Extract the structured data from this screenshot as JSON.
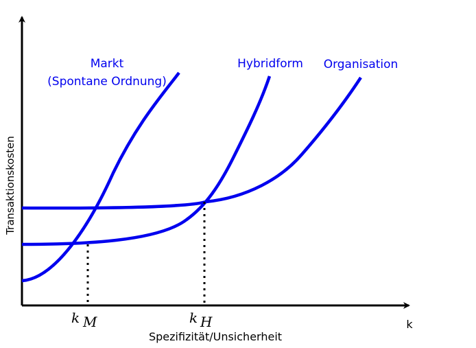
{
  "axes": {
    "y_label": "Transaktionskosten",
    "x_label": "Spezifizität/Unsicherheit",
    "x_end_label": "k"
  },
  "curves": {
    "markt": {
      "line1": "Markt",
      "line2": "(Spontane Ordnung)"
    },
    "hybrid": {
      "label": "Hybridform"
    },
    "organisation": {
      "label": "Organisation"
    }
  },
  "markers": {
    "k_m": {
      "base": "k",
      "sub": "M"
    },
    "k_h": {
      "base": "k",
      "sub": "H"
    }
  },
  "colors": {
    "curve": "#0000ee",
    "axis": "#000000",
    "label": "#0000ee"
  }
}
